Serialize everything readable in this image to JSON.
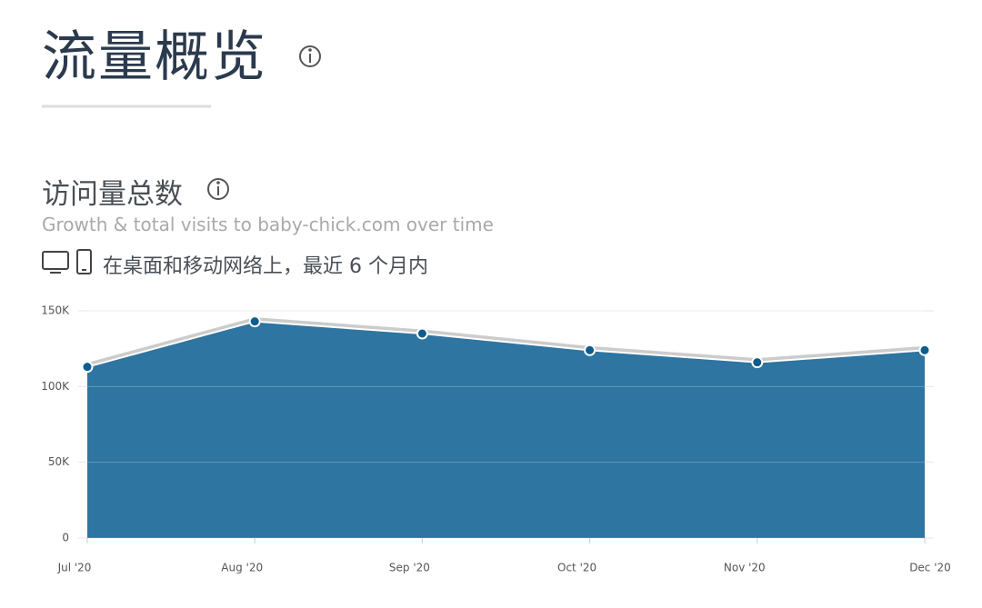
{
  "header": {
    "title": "流量概览",
    "subtitle": "访问量总数",
    "description": "Growth & total visits to baby-chick.com over time",
    "scope": "在桌面和移动网络上，最近 6 个月内"
  },
  "chart_data": {
    "type": "area",
    "categories": [
      "Jul '20",
      "Aug '20",
      "Sep '20",
      "Oct '20",
      "Nov '20",
      "Dec '20"
    ],
    "values": [
      113000,
      143000,
      135000,
      124000,
      116000,
      124000
    ],
    "color": "#2e75a1",
    "marker_color": "#0d5d8e",
    "ylim": [
      0,
      150000
    ],
    "yticks": [
      0,
      {
        "value": 50000,
        "label": "50K"
      },
      {
        "value": 100000,
        "label": "100K"
      },
      {
        "value": 150000,
        "label": "150K"
      }
    ],
    "grid": true
  }
}
